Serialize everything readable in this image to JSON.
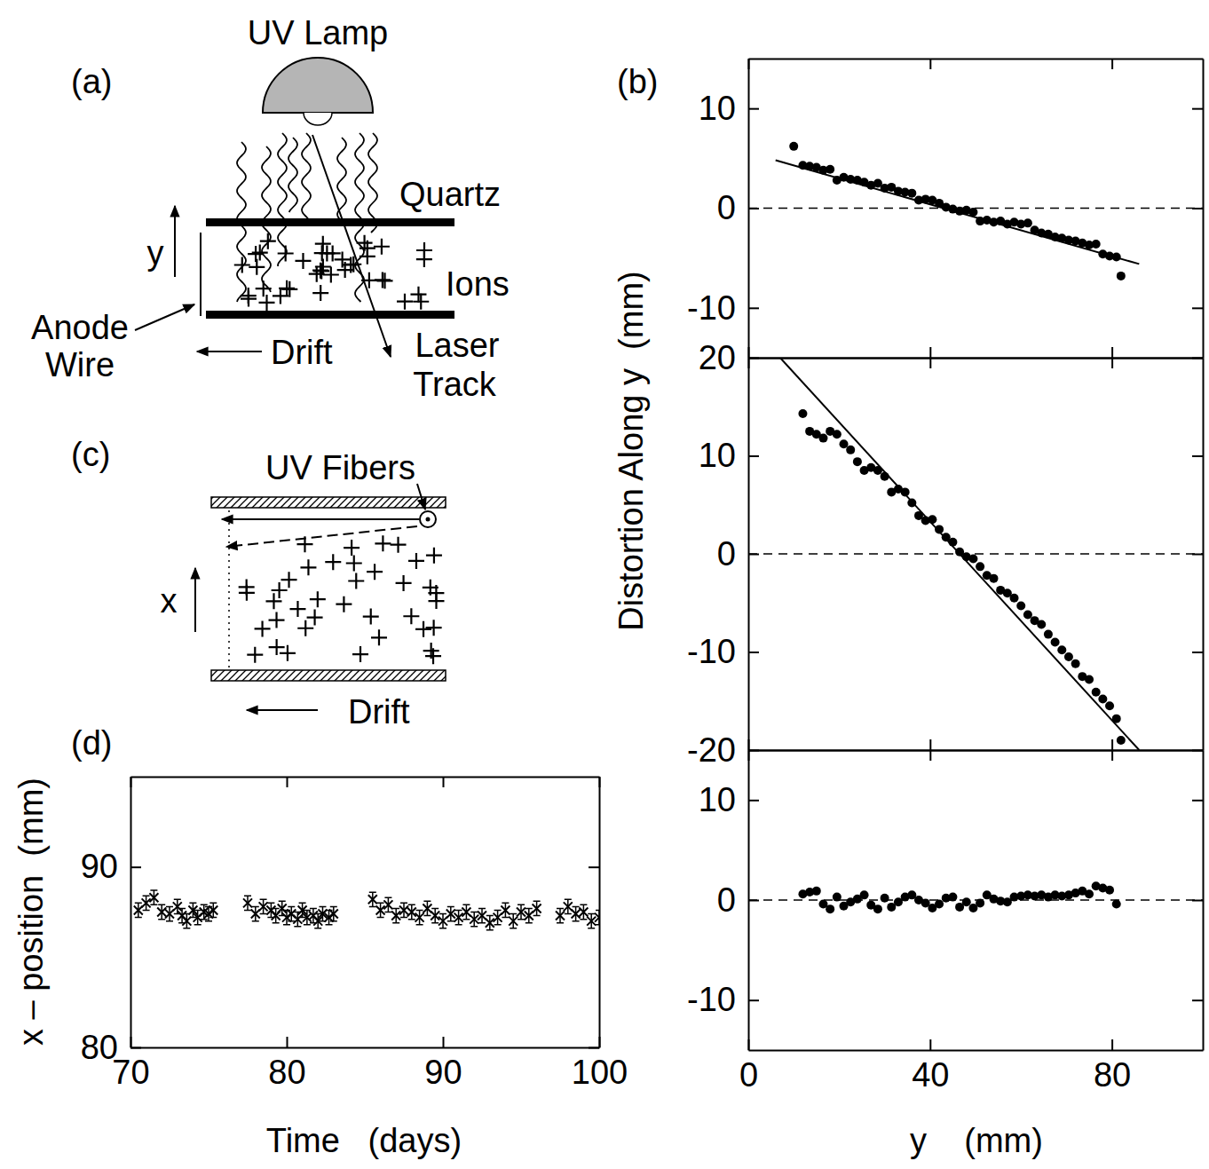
{
  "chart_data": [
    {
      "type": "scatter",
      "panel_label": "(b)",
      "ylabel": "Distortion Along y  (mm)",
      "tick_labels": "y",
      "xlim": [
        0,
        100
      ],
      "xticks": [
        0,
        40,
        80
      ],
      "ylim": [
        -15,
        15
      ],
      "yticks": [
        -10,
        0,
        10
      ],
      "reference_lines": [
        {
          "value": 0,
          "line_style": "dashed"
        }
      ],
      "series": [
        {
          "type": "scatter",
          "marker": "circle",
          "color": "#000000",
          "x": [
            10,
            12,
            13.5,
            15,
            16.5,
            18,
            19.5,
            21,
            22.5,
            24,
            25.5,
            27,
            28.5,
            30,
            31.5,
            33,
            34.5,
            36,
            37.5,
            39,
            40.5,
            42,
            43.5,
            45,
            46.5,
            48,
            49.5,
            51,
            52.5,
            54,
            55.5,
            57,
            58.5,
            60,
            61.5,
            63,
            64.5,
            66,
            67.5,
            69,
            70.5,
            72,
            73.5,
            75,
            76.5,
            78,
            79.5,
            81,
            82
          ],
          "values": [
            6.2,
            4.3,
            4.2,
            4.1,
            3.8,
            3.9,
            2.8,
            3.1,
            2.9,
            2.8,
            2.6,
            2.3,
            2.5,
            2.0,
            2.1,
            1.7,
            1.6,
            1.5,
            0.8,
            0.9,
            0.8,
            0.5,
            0.1,
            -0.1,
            -0.3,
            -0.2,
            -0.4,
            -1.3,
            -1.2,
            -1.4,
            -1.3,
            -1.6,
            -1.4,
            -1.6,
            -1.5,
            -2.2,
            -2.5,
            -2.6,
            -2.9,
            -3.0,
            -3.2,
            -3.3,
            -3.5,
            -3.7,
            -3.6,
            -4.6,
            -4.8,
            -4.9,
            -6.8
          ]
        },
        {
          "type": "line",
          "line_style": "solid",
          "color": "#000000",
          "x": [
            6,
            86
          ],
          "values": [
            4.8,
            -5.6
          ]
        }
      ]
    },
    {
      "type": "scatter",
      "tick_labels": "y",
      "xlim": [
        0,
        100
      ],
      "xticks": [
        0,
        40,
        80
      ],
      "ylim": [
        -20,
        20
      ],
      "yticks": [
        -20,
        -10,
        0,
        10,
        20
      ],
      "reference_lines": [
        {
          "value": 0,
          "line_style": "dashed"
        }
      ],
      "series": [
        {
          "type": "scatter",
          "marker": "circle",
          "color": "#000000",
          "x": [
            12,
            13.5,
            15,
            16.5,
            18,
            19.5,
            21,
            22.5,
            24,
            25.5,
            27,
            28.5,
            30,
            31.5,
            33,
            34.5,
            36,
            37.5,
            39,
            40.5,
            42,
            43.5,
            45,
            46.5,
            48,
            49.5,
            51,
            52.5,
            54,
            55.5,
            57,
            58.5,
            60,
            61.5,
            63,
            64.5,
            66,
            67.5,
            69,
            70.5,
            72,
            73.5,
            75,
            76.5,
            78,
            79.5,
            81,
            82
          ],
          "values": [
            14.3,
            12.5,
            12.2,
            11.8,
            12.5,
            12.2,
            11.2,
            10.6,
            9.4,
            8.5,
            8.8,
            8.5,
            7.9,
            6.3,
            6.6,
            6.3,
            5.2,
            3.9,
            3.4,
            3.5,
            2.5,
            1.7,
            1.2,
            0.2,
            -0.3,
            -0.5,
            -1.3,
            -2.2,
            -2.5,
            -3.7,
            -4.0,
            -4.5,
            -5.3,
            -6.2,
            -6.8,
            -7.2,
            -8.2,
            -9.0,
            -9.8,
            -10.5,
            -11.2,
            -12.5,
            -12.8,
            -14.1,
            -14.8,
            -15.5,
            -16.8,
            -19.0
          ]
        },
        {
          "type": "line",
          "line_style": "solid",
          "color": "#000000",
          "x": [
            7,
            86
          ],
          "values": [
            20,
            -20
          ]
        }
      ]
    },
    {
      "type": "scatter",
      "xlabel": "y    (mm)",
      "xlim": [
        0,
        100
      ],
      "xticks": [
        0,
        40,
        80
      ],
      "ylim": [
        -15,
        15
      ],
      "yticks": [
        -10,
        0,
        10
      ],
      "reference_lines": [
        {
          "value": 0,
          "line_style": "dashed"
        }
      ],
      "series": [
        {
          "type": "scatter",
          "marker": "circle",
          "color": "#000000",
          "x": [
            12,
            13.5,
            15,
            16.5,
            18,
            19.5,
            21,
            22.5,
            24,
            25.5,
            27,
            28.5,
            30,
            31.5,
            33,
            34.5,
            36,
            37.5,
            39,
            40.5,
            42,
            43.5,
            45,
            46.5,
            48,
            49.5,
            51,
            52.5,
            54,
            55.5,
            57,
            58.5,
            60,
            61.5,
            63,
            64.5,
            66,
            67.5,
            69,
            70.5,
            72,
            73.5,
            75,
            76.5,
            78,
            79.5,
            81
          ],
          "values": [
            0.6,
            0.8,
            0.9,
            -0.4,
            -0.9,
            0.3,
            -0.6,
            -0.2,
            0.1,
            0.5,
            -0.5,
            -0.9,
            0.2,
            -0.7,
            -0.2,
            0.3,
            0.5,
            0.0,
            -0.3,
            -0.8,
            -0.4,
            0.2,
            0.3,
            -0.7,
            -0.2,
            -0.8,
            -0.3,
            0.5,
            0.1,
            -0.1,
            -0.2,
            0.3,
            0.4,
            0.5,
            0.4,
            0.5,
            0.3,
            0.5,
            0.4,
            0.5,
            0.7,
            0.9,
            0.6,
            1.4,
            1.2,
            1.0,
            -0.4
          ]
        }
      ]
    },
    {
      "type": "scatter",
      "panel_label": "(d)",
      "xlabel": "Time   (days)",
      "ylabel": "x – position  (mm)",
      "xlim": [
        70,
        100
      ],
      "xticks": [
        70,
        80,
        90,
        100
      ],
      "ylim": [
        80,
        95
      ],
      "yticks": [
        80,
        90
      ],
      "series": [
        {
          "type": "scatter",
          "marker": "x",
          "color": "#000000",
          "x": [
            70.5,
            71,
            71.5,
            72,
            72.5,
            73,
            73.3,
            73.6,
            74,
            74.3,
            74.7,
            75,
            75.3,
            77.5,
            78,
            78.5,
            79,
            79.3,
            79.7,
            80,
            80.3,
            80.7,
            81,
            81.3,
            81.7,
            82,
            82.3,
            82.7,
            83,
            85.5,
            86,
            86.5,
            87,
            87.5,
            88,
            88.5,
            89,
            89.5,
            90,
            90.5,
            91,
            91.5,
            92,
            92.5,
            93,
            93.5,
            94,
            94.5,
            95,
            95.5,
            96,
            97.5,
            98,
            98.5,
            99,
            99.5,
            100
          ],
          "values": [
            87.6,
            88.0,
            88.3,
            87.5,
            87.4,
            87.8,
            87.3,
            87.0,
            87.6,
            87.2,
            87.5,
            87.4,
            87.6,
            88.0,
            87.4,
            87.8,
            87.6,
            87.3,
            87.7,
            87.2,
            87.4,
            87.1,
            87.6,
            87.2,
            87.3,
            87.0,
            87.4,
            87.2,
            87.4,
            88.2,
            87.6,
            87.9,
            87.3,
            87.6,
            87.5,
            87.2,
            87.7,
            87.3,
            87.0,
            87.4,
            87.2,
            87.5,
            87.1,
            87.3,
            86.9,
            87.2,
            87.6,
            87.0,
            87.5,
            87.3,
            87.7,
            87.3,
            87.8,
            87.4,
            87.5,
            87.0,
            87.2
          ],
          "errors": [
            0.4,
            0.4,
            0.4,
            0.4,
            0.4,
            0.4,
            0.4,
            0.4,
            0.4,
            0.4,
            0.4,
            0.4,
            0.4,
            0.4,
            0.4,
            0.4,
            0.4,
            0.4,
            0.4,
            0.4,
            0.4,
            0.4,
            0.4,
            0.4,
            0.4,
            0.4,
            0.4,
            0.4,
            0.4,
            0.4,
            0.4,
            0.4,
            0.4,
            0.4,
            0.4,
            0.4,
            0.4,
            0.4,
            0.4,
            0.4,
            0.4,
            0.4,
            0.4,
            0.4,
            0.4,
            0.4,
            0.4,
            0.4,
            0.4,
            0.4,
            0.4,
            0.4,
            0.4,
            0.4,
            0.4,
            0.4,
            0.4
          ]
        }
      ]
    }
  ],
  "diagrams": {
    "a": {
      "panel": "(a)",
      "lamp": "UV Lamp",
      "axis": "y",
      "plate": "Quartz",
      "charges": "Ions",
      "wire": [
        "Anode",
        "Wire"
      ],
      "drift": "Drift",
      "track": [
        "Laser",
        "Track"
      ]
    },
    "c": {
      "panel": "(c)",
      "source": "UV Fibers",
      "axis": "x",
      "drift": "Drift"
    }
  }
}
